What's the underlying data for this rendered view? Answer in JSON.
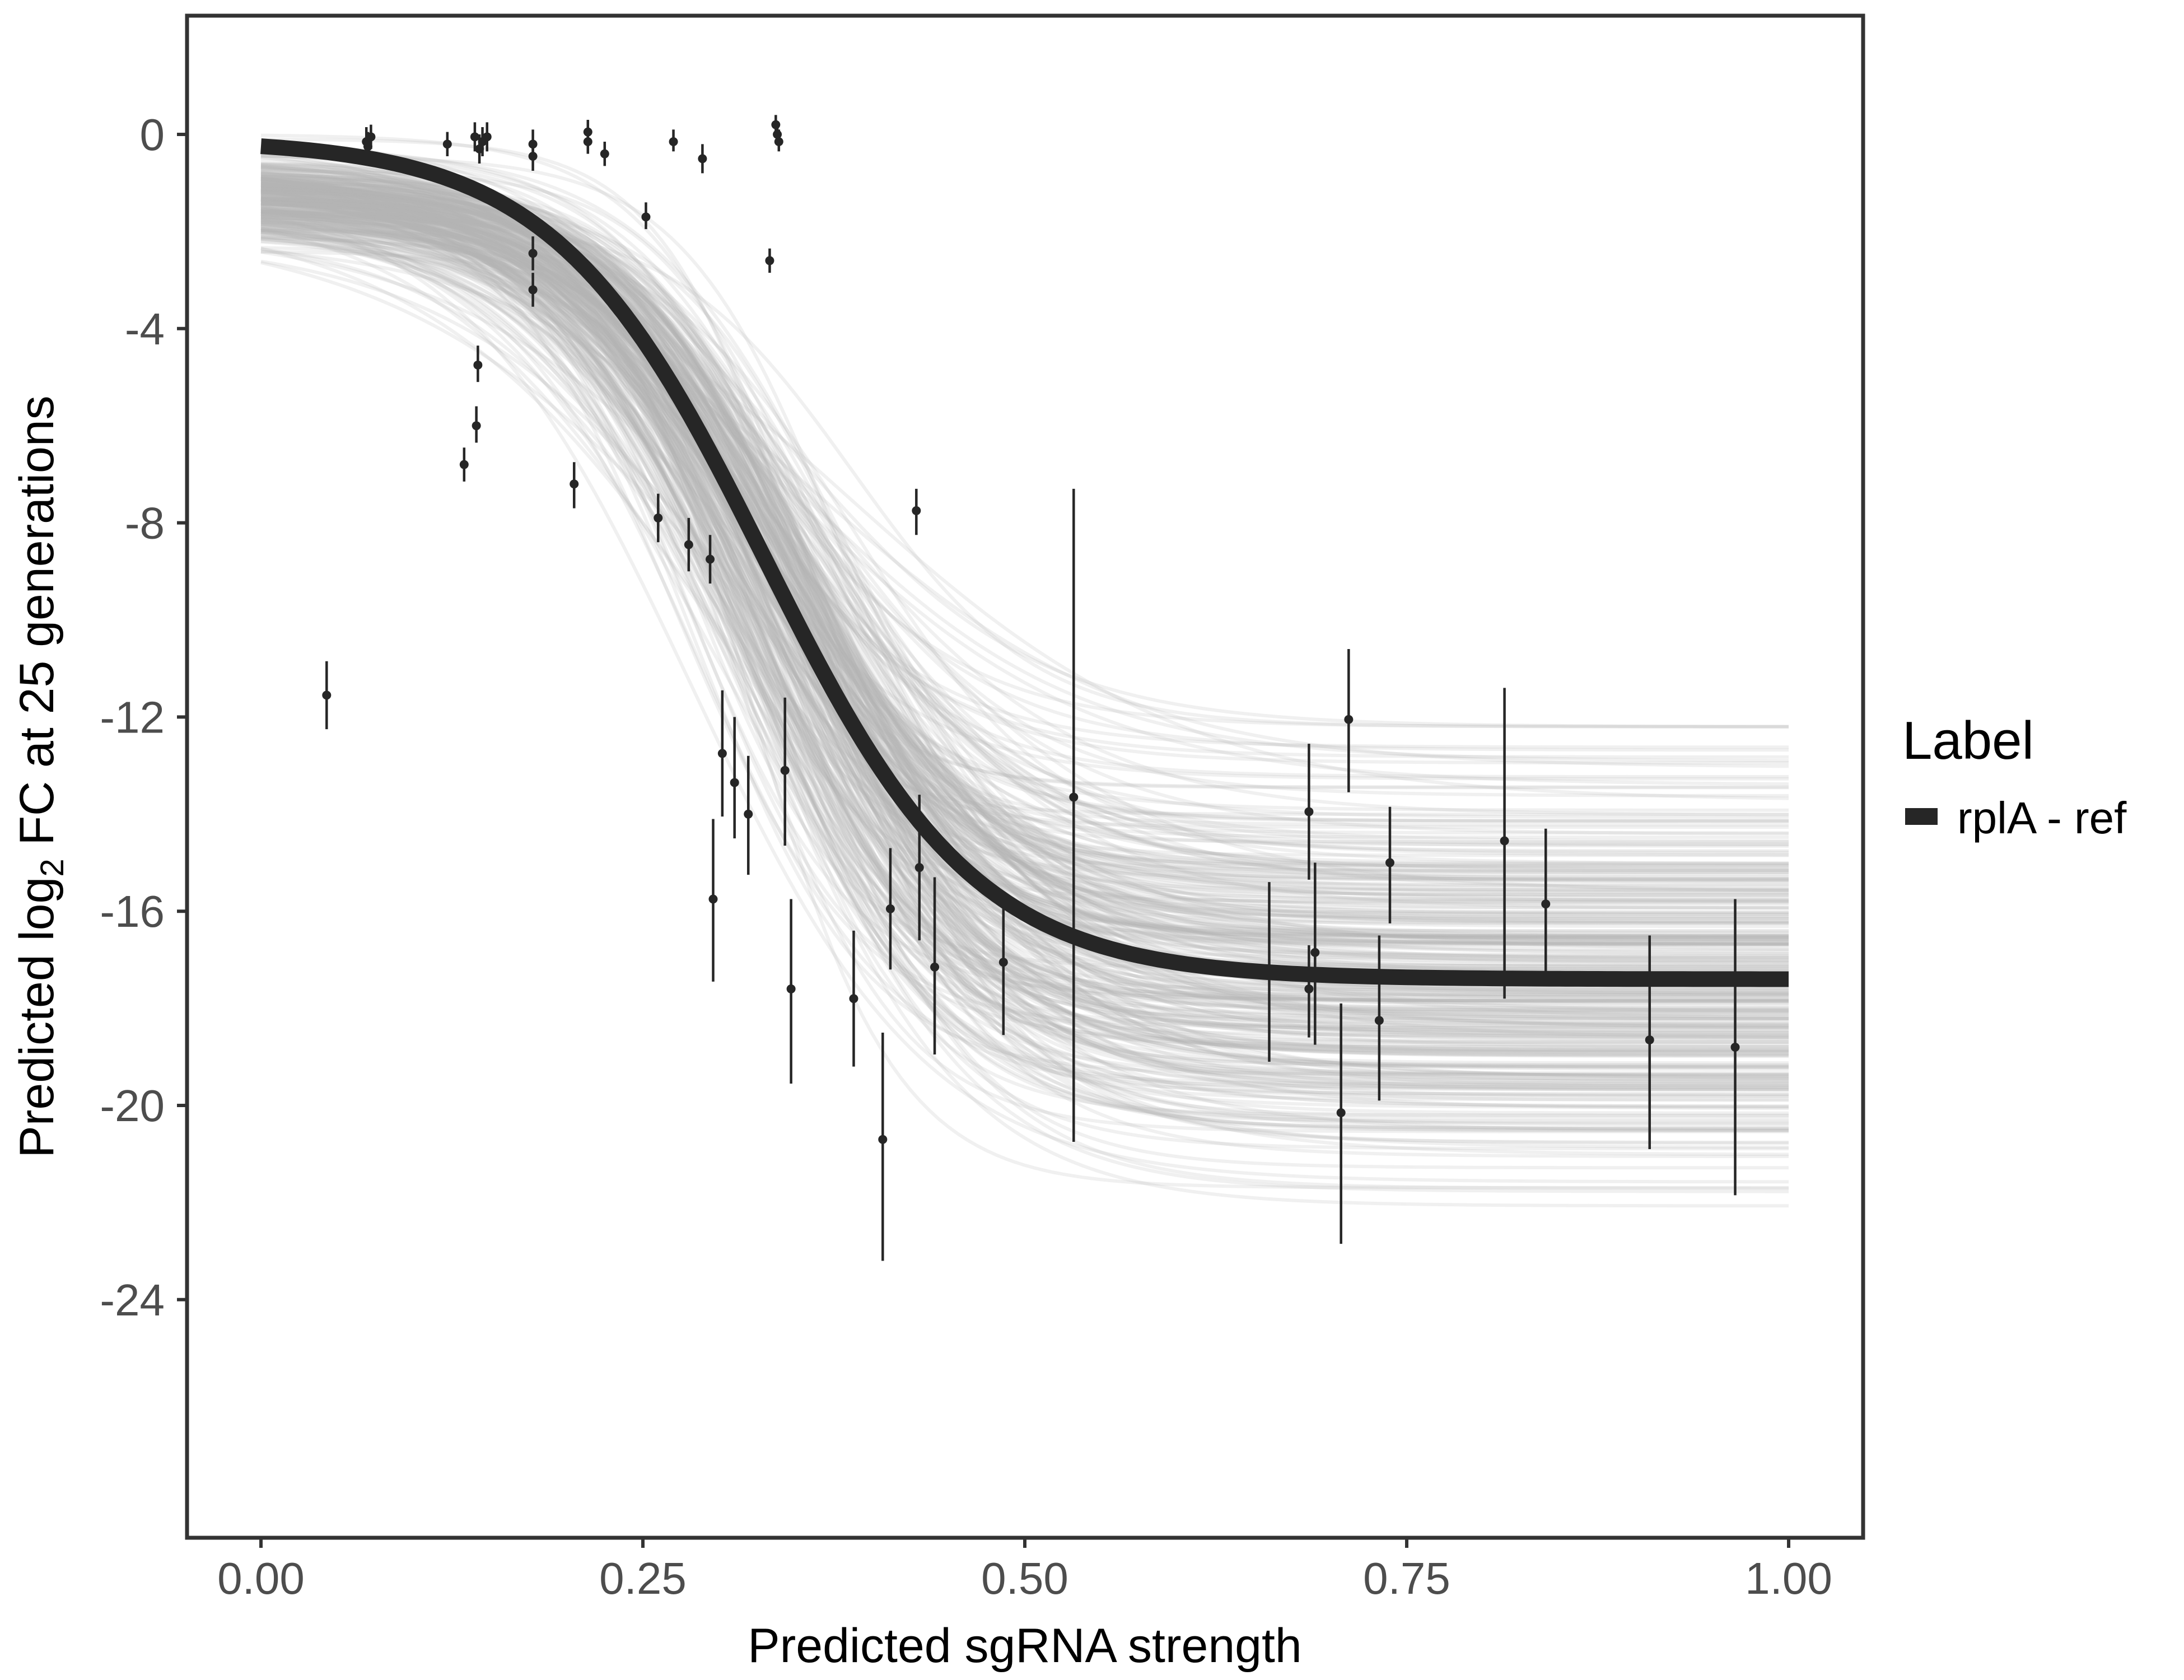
{
  "chart_data": {
    "type": "line",
    "title": "",
    "xlabel": "Predicted sgRNA strength",
    "ylabel_parts": {
      "main": "Predicted  log",
      "sub": "2",
      "rest": " FC at 25 generations"
    },
    "xlim": [
      -0.05,
      1.05
    ],
    "ylim": [
      -29.8,
      2.5
    ],
    "x_ticks": [
      0,
      0.25,
      0.5,
      0.75,
      1
    ],
    "x_tick_labels": [
      "0.00",
      "0.25",
      "0.50",
      "0.75",
      "1.00"
    ],
    "y_ticks": [
      0,
      -4,
      -8,
      -12,
      -16,
      -20,
      -24
    ],
    "y_tick_labels": [
      "0",
      "-4",
      "-8",
      "-12",
      "-16",
      "-20",
      "-24"
    ],
    "grid": false,
    "legend": {
      "title": "Label",
      "position": "right",
      "entries": [
        {
          "label": "rplA - ref",
          "color": "#262626"
        }
      ]
    },
    "fit_curve": {
      "name": "rplA - ref",
      "color": "#262626",
      "model": "logistic",
      "upper": -0.1,
      "lower": -17.4,
      "midpoint": 0.33,
      "steepness": 14.5
    },
    "posterior_draws": {
      "color": "#b3b3b3",
      "count": 320,
      "upper_range": [
        -2.4,
        0
      ],
      "lower_range": [
        -22.1,
        -12.2
      ],
      "midpoint_range": [
        0.27,
        0.4
      ],
      "steepness_range": [
        9,
        22
      ]
    },
    "points": [
      {
        "x": 0.043,
        "y": -11.55,
        "lo": -12.25,
        "hi": -10.85
      },
      {
        "x": 0.069,
        "y": -0.15,
        "lo": -0.4,
        "hi": 0.15
      },
      {
        "x": 0.07,
        "y": -0.25,
        "lo": -0.5,
        "hi": 0.05
      },
      {
        "x": 0.072,
        "y": -0.05,
        "lo": -0.3,
        "hi": 0.2
      },
      {
        "x": 0.122,
        "y": -0.2,
        "lo": -0.45,
        "hi": 0.05
      },
      {
        "x": 0.133,
        "y": -6.8,
        "lo": -7.15,
        "hi": -6.45
      },
      {
        "x": 0.14,
        "y": -0.05,
        "lo": -0.35,
        "hi": 0.25
      },
      {
        "x": 0.141,
        "y": -6.0,
        "lo": -6.35,
        "hi": -5.6
      },
      {
        "x": 0.142,
        "y": -4.75,
        "lo": -5.1,
        "hi": -4.35
      },
      {
        "x": 0.143,
        "y": -0.3,
        "lo": -0.6,
        "hi": 0.0
      },
      {
        "x": 0.145,
        "y": -0.15,
        "lo": -0.45,
        "hi": 0.15
      },
      {
        "x": 0.148,
        "y": -0.05,
        "lo": -0.35,
        "hi": 0.25
      },
      {
        "x": 0.178,
        "y": -0.2,
        "lo": -0.45,
        "hi": 0.1
      },
      {
        "x": 0.178,
        "y": -0.45,
        "lo": -0.75,
        "hi": -0.15
      },
      {
        "x": 0.178,
        "y": -2.45,
        "lo": -2.8,
        "hi": -2.1
      },
      {
        "x": 0.178,
        "y": -3.2,
        "lo": -3.55,
        "hi": -2.85
      },
      {
        "x": 0.205,
        "y": -7.2,
        "lo": -7.7,
        "hi": -6.75
      },
      {
        "x": 0.214,
        "y": 0.05,
        "lo": -0.2,
        "hi": 0.3
      },
      {
        "x": 0.214,
        "y": -0.15,
        "lo": -0.4,
        "hi": 0.1
      },
      {
        "x": 0.225,
        "y": -0.4,
        "lo": -0.65,
        "hi": -0.15
      },
      {
        "x": 0.252,
        "y": -1.7,
        "lo": -1.95,
        "hi": -1.4
      },
      {
        "x": 0.26,
        "y": -7.9,
        "lo": -8.4,
        "hi": -7.4
      },
      {
        "x": 0.27,
        "y": -0.15,
        "lo": -0.35,
        "hi": 0.1
      },
      {
        "x": 0.28,
        "y": -8.45,
        "lo": -9.0,
        "hi": -7.9
      },
      {
        "x": 0.289,
        "y": -0.5,
        "lo": -0.8,
        "hi": -0.2
      },
      {
        "x": 0.294,
        "y": -8.75,
        "lo": -9.25,
        "hi": -8.25
      },
      {
        "x": 0.296,
        "y": -15.75,
        "lo": -17.45,
        "hi": -14.1
      },
      {
        "x": 0.302,
        "y": -12.75,
        "lo": -14.05,
        "hi": -11.45
      },
      {
        "x": 0.31,
        "y": -13.35,
        "lo": -14.5,
        "hi": -12.0
      },
      {
        "x": 0.319,
        "y": -14.0,
        "lo": -15.25,
        "hi": -12.8
      },
      {
        "x": 0.333,
        "y": -2.6,
        "lo": -2.85,
        "hi": -2.35
      },
      {
        "x": 0.337,
        "y": 0.2,
        "lo": -0.05,
        "hi": 0.4
      },
      {
        "x": 0.338,
        "y": 0.0,
        "lo": -0.2,
        "hi": 0.25
      },
      {
        "x": 0.339,
        "y": -0.15,
        "lo": -0.35,
        "hi": 0.1
      },
      {
        "x": 0.343,
        "y": -13.1,
        "lo": -14.65,
        "hi": -11.6
      },
      {
        "x": 0.347,
        "y": -17.6,
        "lo": -19.55,
        "hi": -15.75
      },
      {
        "x": 0.388,
        "y": -17.8,
        "lo": -19.2,
        "hi": -16.4
      },
      {
        "x": 0.407,
        "y": -20.7,
        "lo": -23.2,
        "hi": -18.5
      },
      {
        "x": 0.412,
        "y": -15.95,
        "lo": -17.2,
        "hi": -14.7
      },
      {
        "x": 0.429,
        "y": -7.75,
        "lo": -8.25,
        "hi": -7.3
      },
      {
        "x": 0.431,
        "y": -15.1,
        "lo": -16.6,
        "hi": -13.6
      },
      {
        "x": 0.441,
        "y": -17.15,
        "lo": -18.95,
        "hi": -15.3
      },
      {
        "x": 0.486,
        "y": -17.05,
        "lo": -18.55,
        "hi": -15.65
      },
      {
        "x": 0.532,
        "y": -13.65,
        "lo": -20.75,
        "hi": -7.3
      },
      {
        "x": 0.66,
        "y": -17.25,
        "lo": -19.1,
        "hi": -15.4
      },
      {
        "x": 0.686,
        "y": -13.95,
        "lo": -15.35,
        "hi": -12.55
      },
      {
        "x": 0.686,
        "y": -17.6,
        "lo": -18.6,
        "hi": -16.7
      },
      {
        "x": 0.69,
        "y": -16.85,
        "lo": -18.75,
        "hi": -15.0
      },
      {
        "x": 0.707,
        "y": -20.15,
        "lo": -22.85,
        "hi": -17.9
      },
      {
        "x": 0.712,
        "y": -12.05,
        "lo": -13.55,
        "hi": -10.6
      },
      {
        "x": 0.732,
        "y": -18.25,
        "lo": -19.9,
        "hi": -16.5
      },
      {
        "x": 0.739,
        "y": -15.0,
        "lo": -16.25,
        "hi": -13.85
      },
      {
        "x": 0.814,
        "y": -14.55,
        "lo": -17.8,
        "hi": -11.4
      },
      {
        "x": 0.841,
        "y": -15.85,
        "lo": -17.35,
        "hi": -14.3
      },
      {
        "x": 0.909,
        "y": -18.65,
        "lo": -20.9,
        "hi": -16.5
      },
      {
        "x": 0.965,
        "y": -18.8,
        "lo": -21.85,
        "hi": -15.75
      }
    ]
  }
}
